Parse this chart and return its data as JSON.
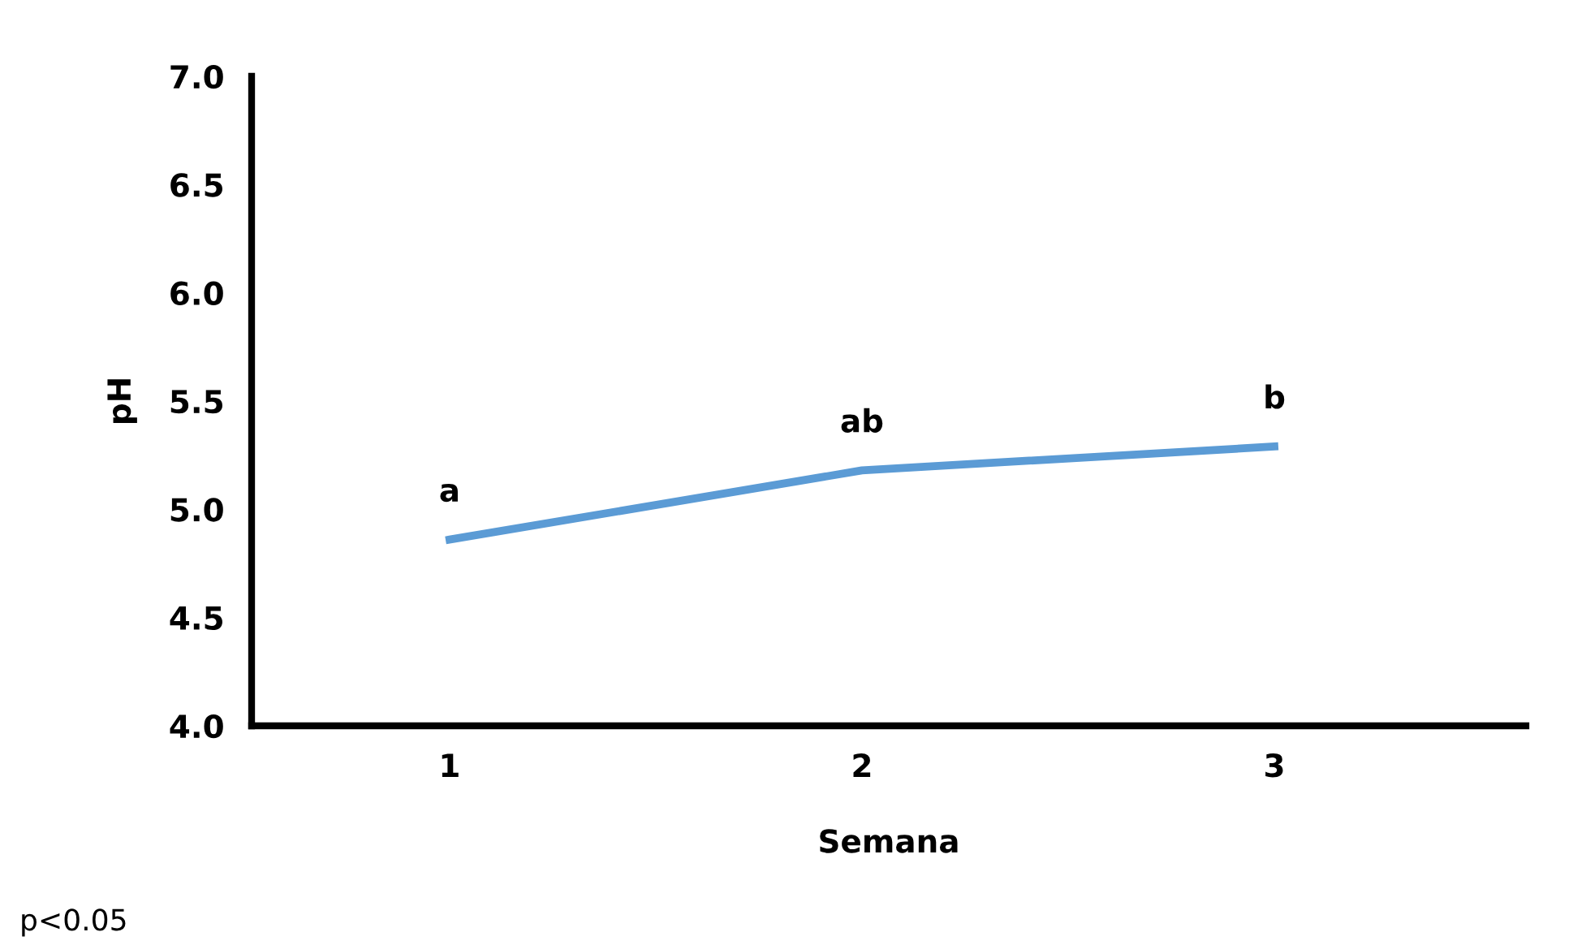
{
  "chart_data": {
    "type": "line",
    "xlabel": "Semana",
    "ylabel": "pH",
    "categories": [
      "1",
      "2",
      "3"
    ],
    "series": [
      {
        "color": "#5b9bd5",
        "values": [
          4.86,
          5.18,
          5.29
        ]
      }
    ],
    "ylim": [
      4.0,
      7.0
    ],
    "yticks": [
      {
        "value": 4.0,
        "label": "4.0"
      },
      {
        "value": 4.5,
        "label": "4.5"
      },
      {
        "value": 5.0,
        "label": "5.0"
      },
      {
        "value": 5.5,
        "label": "5.5"
      },
      {
        "value": 6.0,
        "label": "6.0"
      },
      {
        "value": 6.5,
        "label": "6.5"
      },
      {
        "value": 7.0,
        "label": "7.0"
      }
    ],
    "annotations": [
      {
        "text": "a",
        "x": "1",
        "y": 4.86
      },
      {
        "text": "ab",
        "x": "2",
        "y": 5.18
      },
      {
        "text": "b",
        "x": "3",
        "y": 5.29
      },
      "p<0.05"
    ],
    "grid": false,
    "legend": false,
    "marker": "none",
    "line_style": "solid"
  }
}
